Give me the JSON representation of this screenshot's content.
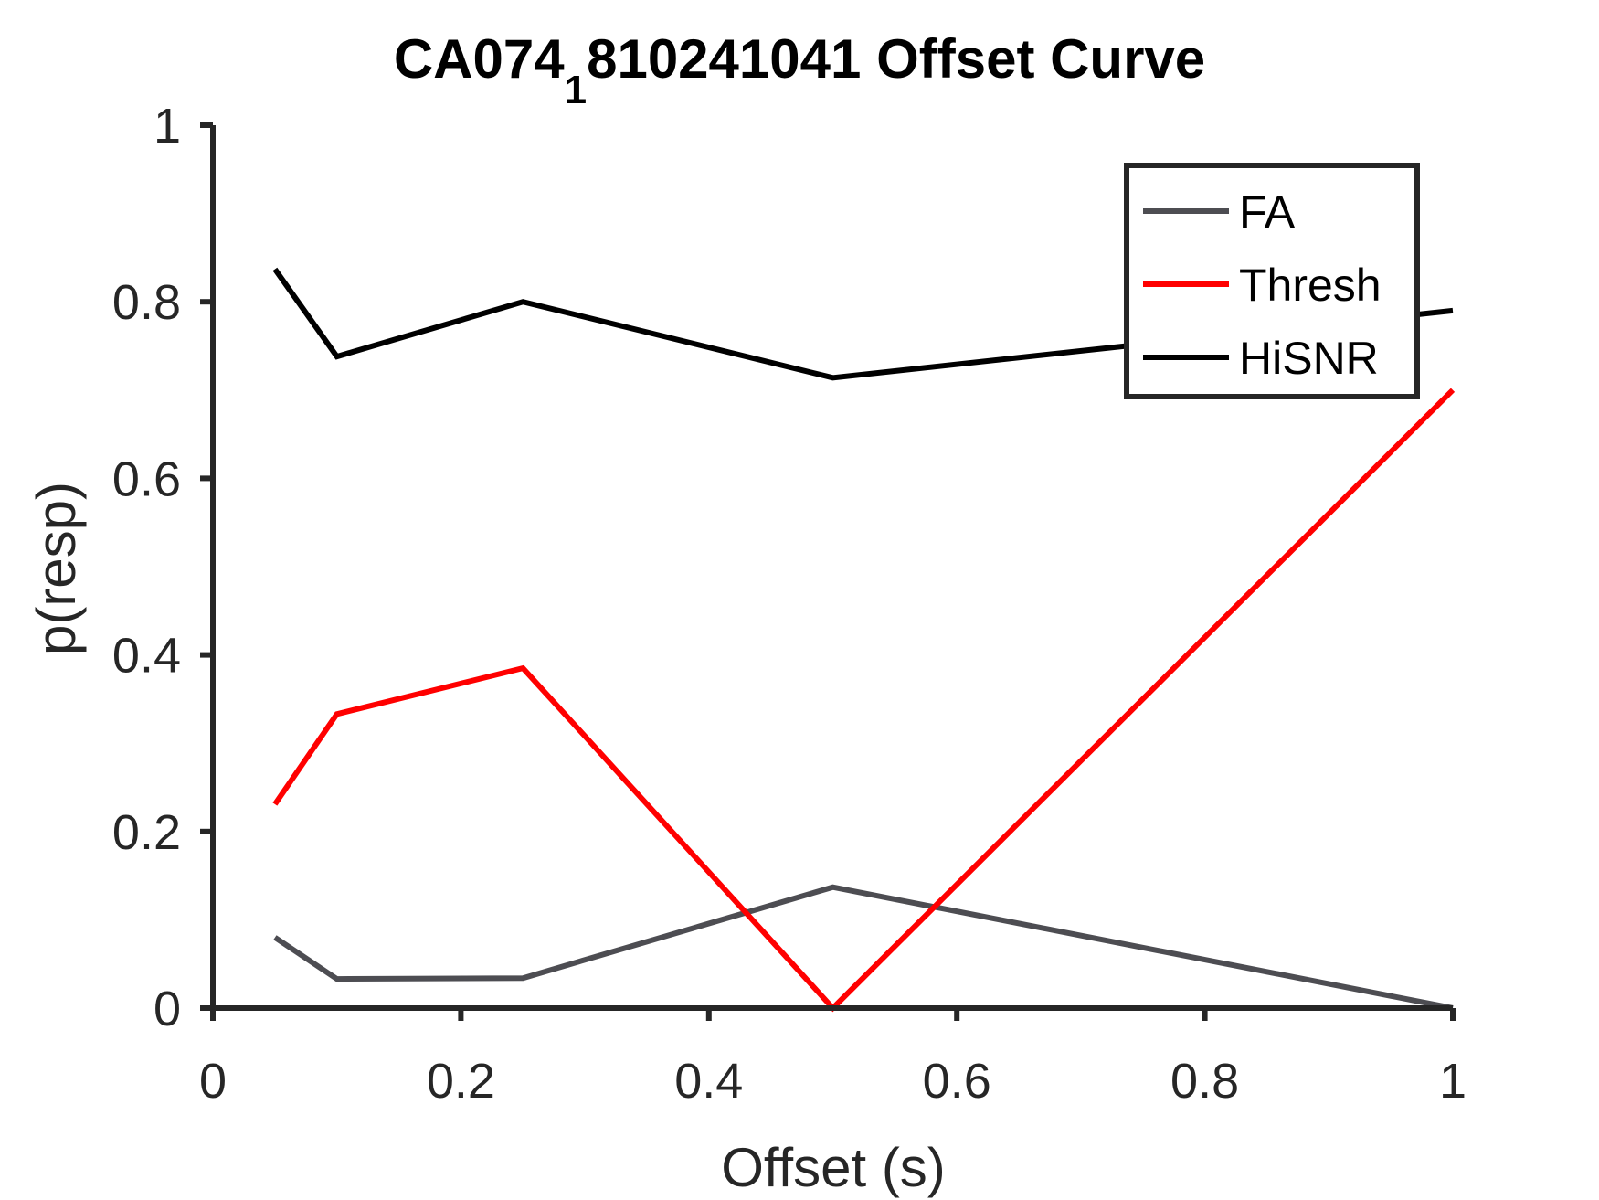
{
  "chart_data": {
    "type": "line",
    "title_main": "CA074",
    "title_sub": "1",
    "title_rest": "810241041 Offset Curve",
    "xlabel": "Offset (s)",
    "ylabel": "p(resp)",
    "xlim": [
      0,
      1
    ],
    "ylim": [
      0,
      1
    ],
    "xticks": [
      "0",
      "0.2",
      "0.4",
      "0.6",
      "0.8",
      "1"
    ],
    "yticks": [
      "0",
      "0.2",
      "0.4",
      "0.6",
      "0.8",
      "1"
    ],
    "x": [
      0.05,
      0.1,
      0.25,
      0.5,
      1.0
    ],
    "grid": false,
    "legend_position": "top-right",
    "series": [
      {
        "name": "FA",
        "color": "#4d4d52",
        "values": [
          0.08,
          0.033,
          0.034,
          0.137,
          0.0
        ]
      },
      {
        "name": "Thresh",
        "color": "#ff0000",
        "values": [
          0.231,
          0.333,
          0.385,
          0.0,
          0.7
        ]
      },
      {
        "name": "HiSNR",
        "color": "#000000",
        "values": [
          0.837,
          0.738,
          0.8,
          0.714,
          0.79
        ]
      }
    ]
  }
}
